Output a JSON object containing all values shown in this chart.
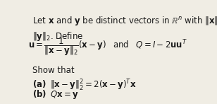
{
  "background_color": "#f0ede4",
  "text_color": "#1a1a1a",
  "figsize": [
    3.08,
    1.47
  ],
  "dpi": 100,
  "fontsize": 8.5
}
